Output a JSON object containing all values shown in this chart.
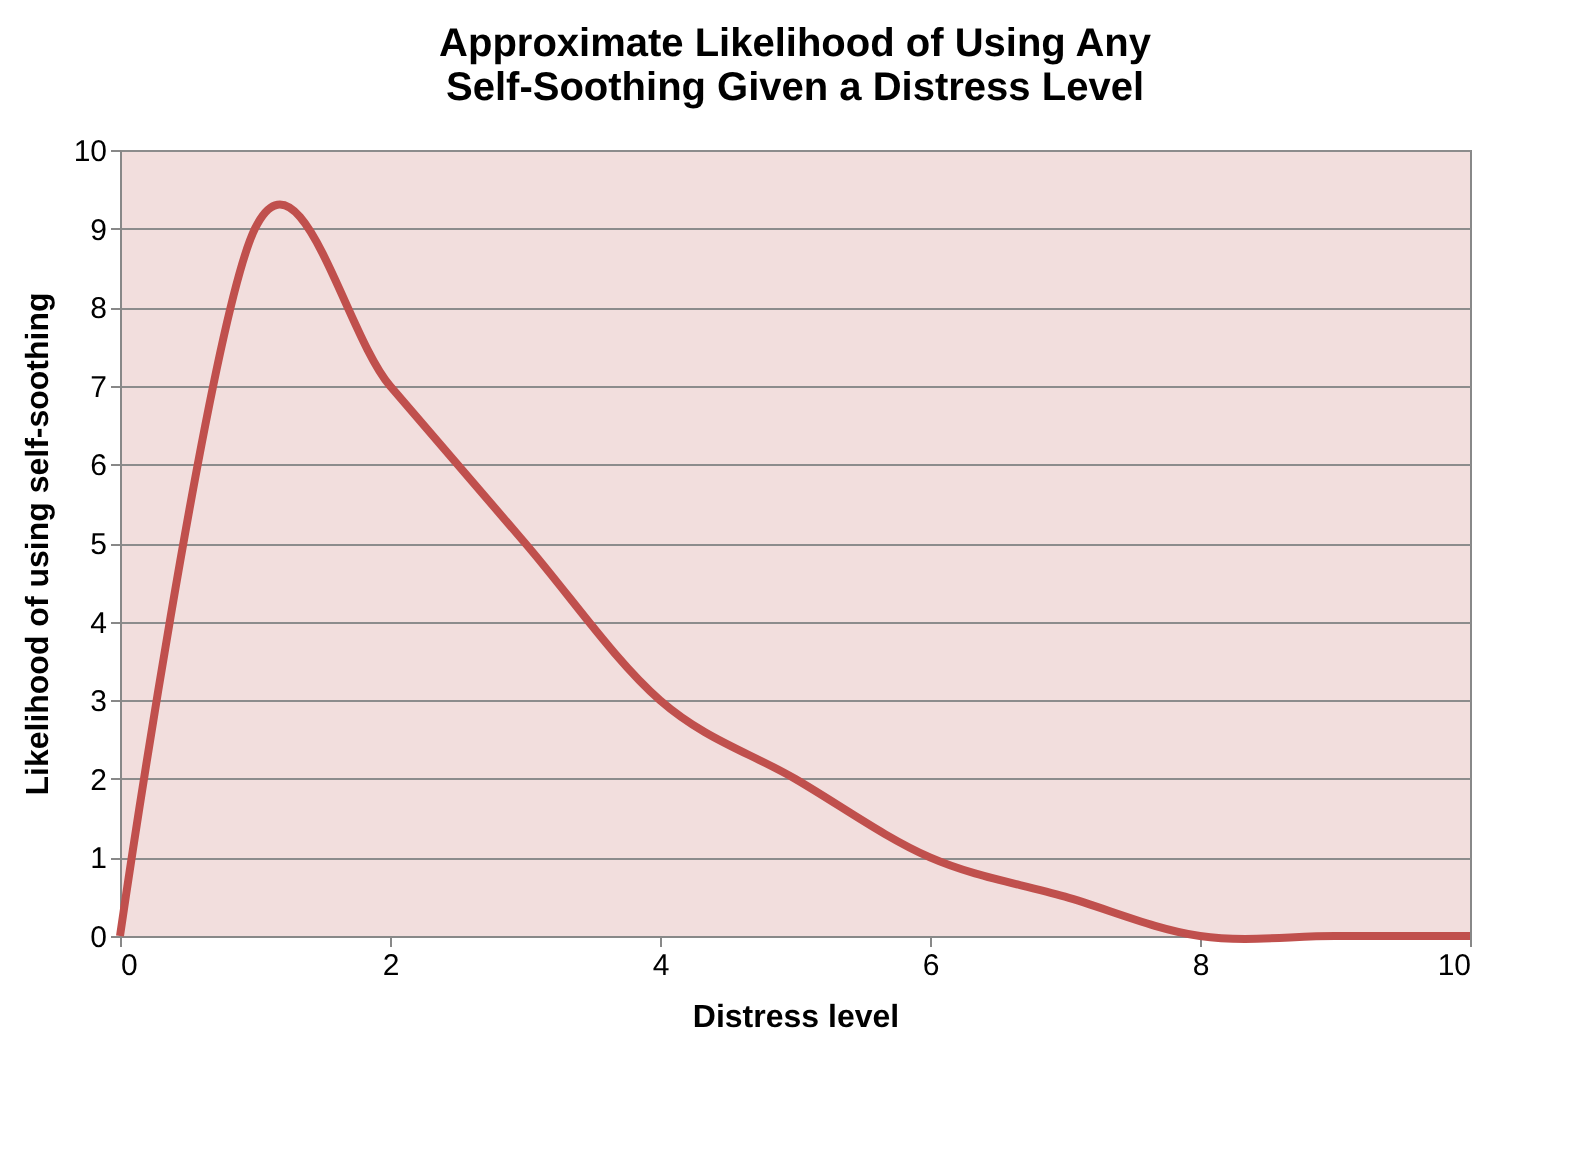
{
  "chart_data": {
    "type": "line",
    "title": "Approximate Likelihood of Using Any Self-Soothing Given a Distress Level",
    "xlabel": "Distress level",
    "ylabel": "Likelihood of using self-soothing",
    "x": [
      0,
      1,
      2,
      3,
      4,
      5,
      6,
      7,
      8,
      9,
      10
    ],
    "series": [
      {
        "color": "#c0504d",
        "values": [
          0,
          9,
          7,
          5,
          3,
          2,
          1,
          0.5,
          0,
          0,
          0
        ]
      }
    ],
    "xlim": [
      0,
      10
    ],
    "xticks": [
      0,
      2,
      4,
      6,
      8,
      10
    ],
    "ylim": [
      0,
      10
    ],
    "yticks": [
      0,
      1,
      2,
      3,
      4,
      5,
      6,
      7,
      8,
      9,
      10
    ],
    "grid": "y",
    "legend": false,
    "marker": "none",
    "line_style": "solid"
  }
}
